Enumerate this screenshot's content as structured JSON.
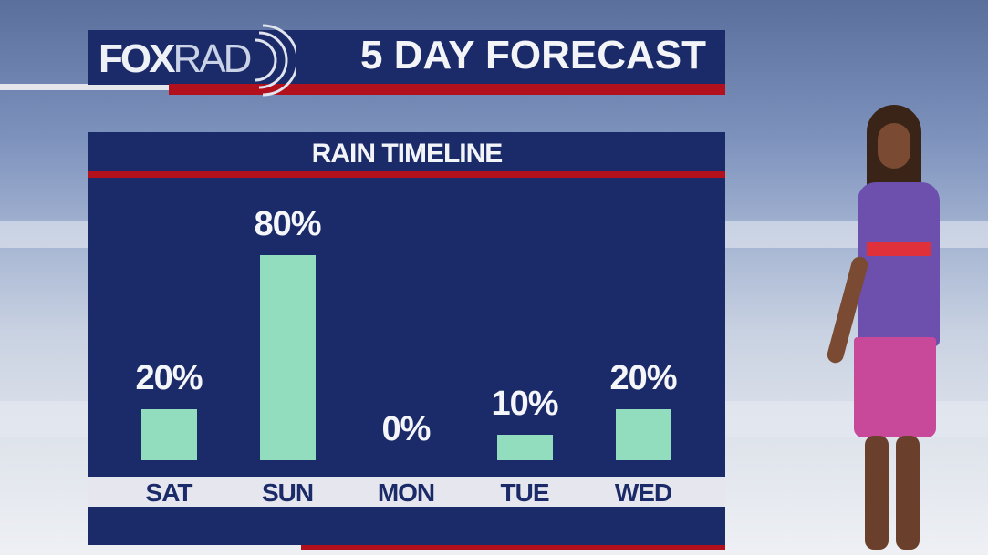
{
  "header": {
    "logo_fox": "FOX",
    "logo_rad": "RAD",
    "title": "5 DAY FORECAST"
  },
  "colors": {
    "navy": "#1b2a68",
    "red": "#b3101e",
    "bar": "#93ddbf",
    "strip": "#e6e7ee"
  },
  "chart_data": {
    "type": "bar",
    "title": "RAIN TIMELINE",
    "categories": [
      "SAT",
      "SUN",
      "MON",
      "TUE",
      "WED"
    ],
    "values": [
      20,
      80,
      0,
      10,
      20
    ],
    "labels": [
      "20%",
      "80%",
      "0%",
      "10%",
      "20%"
    ],
    "ylim": [
      0,
      100
    ],
    "grid": false
  }
}
